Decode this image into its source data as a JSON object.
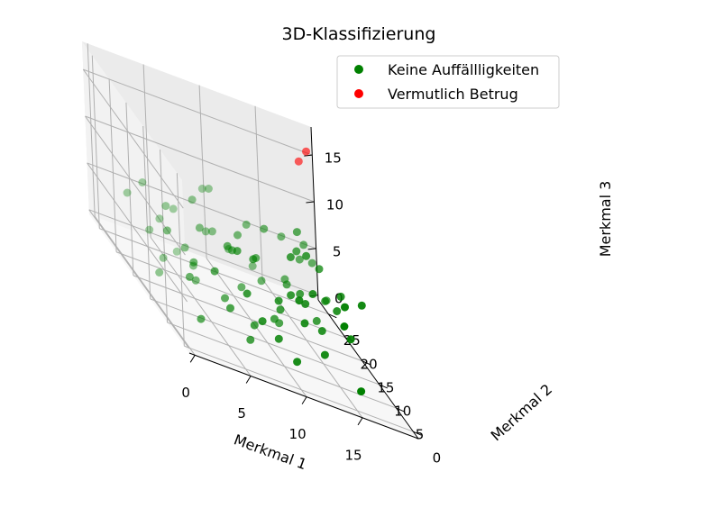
{
  "chart_data": {
    "type": "scatter",
    "title": "3D-Klassifizierung",
    "xlabel": "Merkmal 1",
    "ylabel": "Merkmal 2",
    "zlabel": "Merkmal 3",
    "x_ticks": [
      "0",
      "5",
      "10",
      "15"
    ],
    "y_ticks": [
      "0",
      "5",
      "10",
      "15",
      "20",
      "25"
    ],
    "z_ticks": [
      "0",
      "5",
      "10",
      "15"
    ],
    "grid": true,
    "legend": "top-right",
    "series": [
      {
        "name": "Keine Auffällligkeiten",
        "color": "#008000",
        "points": [
          [
            2,
            3,
            2
          ],
          [
            5,
            4,
            4
          ],
          [
            7,
            5,
            1
          ],
          [
            9,
            3,
            3
          ],
          [
            12,
            5,
            5
          ],
          [
            14,
            6,
            2
          ],
          [
            16,
            2,
            1
          ],
          [
            3,
            8,
            6
          ],
          [
            6,
            9,
            3
          ],
          [
            8,
            7,
            2
          ],
          [
            11,
            9,
            4
          ],
          [
            13,
            8,
            6
          ],
          [
            15,
            10,
            3
          ],
          [
            17,
            12,
            5
          ],
          [
            1,
            12,
            2
          ],
          [
            4,
            14,
            5
          ],
          [
            6,
            16,
            7
          ],
          [
            9,
            14,
            3
          ],
          [
            11,
            16,
            6
          ],
          [
            14,
            17,
            4
          ],
          [
            16,
            15,
            2
          ],
          [
            18,
            14,
            6
          ],
          [
            2,
            18,
            4
          ],
          [
            5,
            20,
            2
          ],
          [
            8,
            19,
            6
          ],
          [
            10,
            21,
            4
          ],
          [
            12,
            22,
            7
          ],
          [
            15,
            21,
            3
          ],
          [
            17,
            23,
            5
          ],
          [
            19,
            22,
            2
          ],
          [
            3,
            23,
            7
          ],
          [
            6,
            24,
            5
          ],
          [
            9,
            25,
            8
          ],
          [
            13,
            24,
            2
          ],
          [
            16,
            25,
            6
          ],
          [
            19,
            26,
            4
          ],
          [
            4,
            5,
            7
          ],
          [
            7,
            11,
            8
          ],
          [
            10,
            6,
            6
          ],
          [
            13,
            12,
            9
          ],
          [
            15,
            17,
            8
          ],
          [
            18,
            19,
            3
          ],
          [
            1,
            9,
            8
          ],
          [
            5,
            15,
            3
          ],
          [
            8,
            21,
            5
          ],
          [
            11,
            11,
            2
          ],
          [
            14,
            9,
            7
          ],
          [
            16,
            20,
            9
          ],
          [
            3,
            16,
            8
          ],
          [
            7,
            1,
            5
          ],
          [
            10,
            1,
            2
          ],
          [
            12,
            13,
            1
          ],
          [
            2,
            6,
            5
          ],
          [
            6,
            18,
            9
          ],
          [
            9,
            10,
            8
          ],
          [
            12,
            18,
            3
          ],
          [
            15,
            3,
            7
          ],
          [
            17,
            8,
            4
          ],
          [
            19,
            11,
            7
          ],
          [
            4,
            11,
            3
          ],
          [
            8,
            13,
            7
          ],
          [
            11,
            3,
            8
          ],
          [
            13,
            20,
            8
          ],
          [
            18,
            25,
            6
          ],
          [
            1,
            21,
            6
          ],
          [
            5,
            25,
            3
          ],
          [
            7,
            8,
            9
          ],
          [
            14,
            13,
            5
          ],
          [
            16,
            6,
            8
          ],
          [
            2,
            14,
            3
          ],
          [
            10,
            18,
            7
          ],
          [
            17,
            17,
            7
          ],
          [
            6,
            2,
            7
          ],
          [
            12,
            9,
            6
          ],
          [
            9,
            23,
            9
          ],
          [
            15,
            14,
            9
          ]
        ]
      },
      {
        "name": "Vermutlich Betrug",
        "color": "#ff0000",
        "points": [
          [
            18,
            23,
            17
          ],
          [
            17,
            22,
            16
          ]
        ]
      }
    ]
  }
}
